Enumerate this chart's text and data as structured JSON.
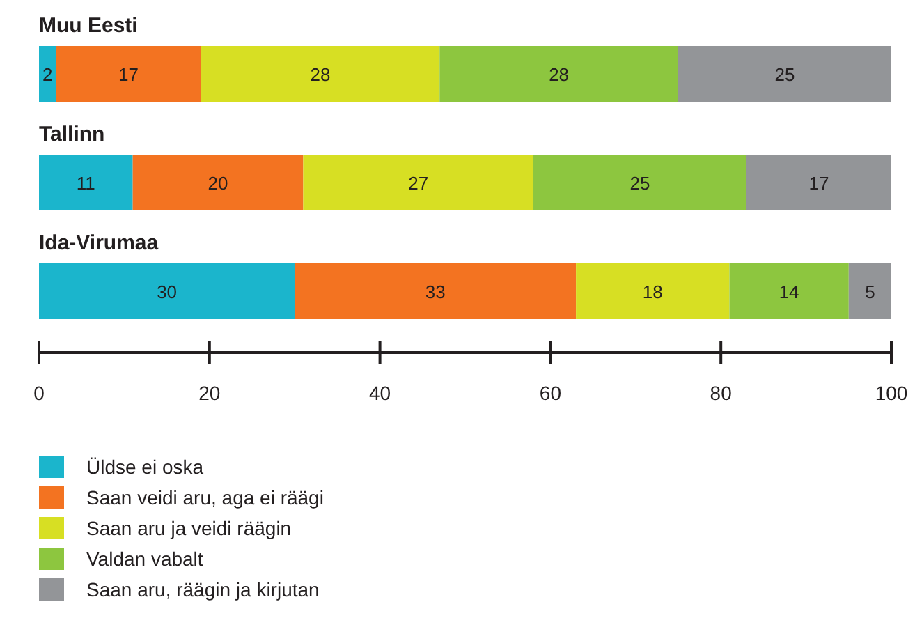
{
  "chart_data": {
    "type": "bar",
    "orientation": "horizontal",
    "stacked": true,
    "categories": [
      "Muu Eesti",
      "Tallinn",
      "Ida-Virumaa"
    ],
    "series": [
      {
        "name": "Üldse ei oska",
        "color": "#1bb5cc",
        "values": [
          2,
          11,
          30
        ]
      },
      {
        "name": "Saan veidi aru, aga ei räägi",
        "color": "#f37321",
        "values": [
          17,
          20,
          33
        ]
      },
      {
        "name": "Saan aru ja veidi räägin",
        "color": "#d7df23",
        "values": [
          28,
          27,
          18
        ]
      },
      {
        "name": "Valdan vabalt",
        "color": "#8dc63f",
        "values": [
          28,
          25,
          14
        ]
      },
      {
        "name": "Saan aru, räägin ja kirjutan",
        "color": "#939598",
        "values": [
          25,
          17,
          5
        ]
      }
    ],
    "xlim": [
      0,
      100
    ],
    "xticks": [
      0,
      20,
      40,
      60,
      80,
      100
    ],
    "data_labels": true,
    "legend": "bottom",
    "grid": false
  }
}
